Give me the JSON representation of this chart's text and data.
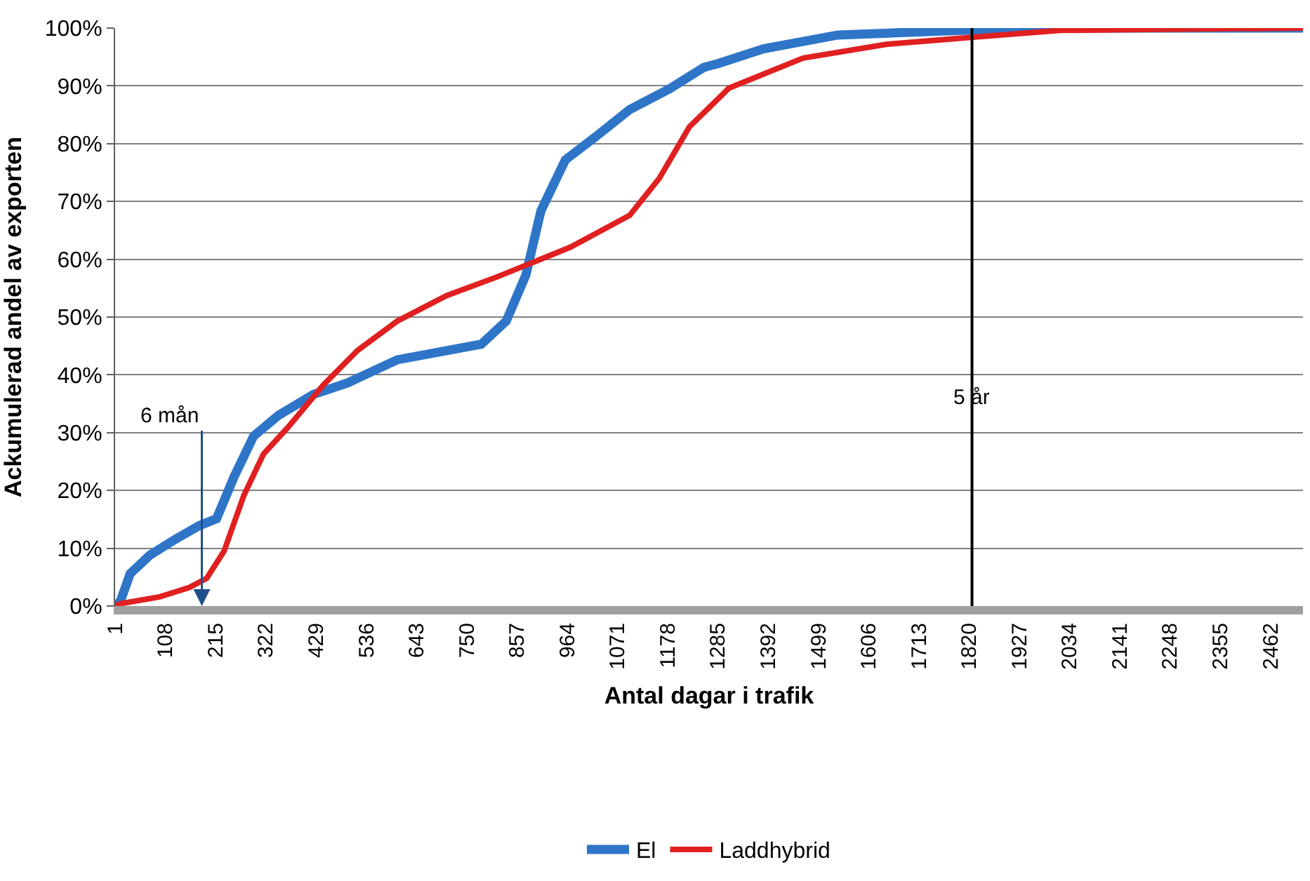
{
  "chart_data": {
    "type": "line",
    "xlabel": "Antal dagar i trafik",
    "ylabel": "Ackumulerad andel av exporten",
    "xlim": [
      1,
      2531
    ],
    "xticks": [
      1,
      108,
      215,
      322,
      429,
      536,
      643,
      750,
      857,
      964,
      1071,
      1178,
      1285,
      1392,
      1499,
      1606,
      1713,
      1820,
      1927,
      2034,
      2141,
      2248,
      2355,
      2462
    ],
    "ylim": [
      0,
      100
    ],
    "yticks": [
      {
        "value": 0,
        "label": "0%"
      },
      {
        "value": 10,
        "label": "10%"
      },
      {
        "value": 20,
        "label": "20%"
      },
      {
        "value": 30,
        "label": "30%"
      },
      {
        "value": 40,
        "label": "40%"
      },
      {
        "value": 50,
        "label": "50%"
      },
      {
        "value": 60,
        "label": "60%"
      },
      {
        "value": 70,
        "label": "70%"
      },
      {
        "value": 80,
        "label": "80%"
      },
      {
        "value": 90,
        "label": "90%"
      },
      {
        "value": 100,
        "label": "100%"
      }
    ],
    "grid": "y",
    "legend": "bottom",
    "marker": "none",
    "line_style": "solid",
    "ref_lines": [
      {
        "axis": "x",
        "value": 1826,
        "label": "5 år",
        "color": "#000000"
      }
    ],
    "annotations": [
      "6 mån"
    ],
    "series": [
      {
        "name": "El",
        "color": "#2e75c8",
        "x": [
          1,
          12,
          33,
          75,
          128,
          180,
          217,
          254,
          296,
          349,
          423,
          496,
          602,
          707,
          781,
          834,
          876,
          908,
          960,
          1023,
          1097,
          1182,
          1255,
          1287,
          1382,
          1540,
          1803,
          2014,
          2531
        ],
        "values": [
          0,
          0.8,
          5.6,
          8.8,
          11.5,
          13.9,
          15.1,
          22.3,
          29.4,
          33,
          36.6,
          38.6,
          42.6,
          44.2,
          45.3,
          49.3,
          57.3,
          68.4,
          77.2,
          81.1,
          85.9,
          89.5,
          93.2,
          93.9,
          96.4,
          98.8,
          99.6,
          100,
          100
        ]
      },
      {
        "name": "Laddhybrid",
        "color": "#e02020",
        "x": [
          1,
          12,
          96,
          159,
          196,
          233,
          275,
          317,
          370,
          444,
          517,
          602,
          707,
          813,
          886,
          971,
          1097,
          1160,
          1224,
          1297,
          1308,
          1466,
          1645,
          1824,
          2014,
          2225,
          2531
        ],
        "values": [
          0,
          0.4,
          1.6,
          3.2,
          4.8,
          9.5,
          19.1,
          26.3,
          31,
          38.2,
          44.2,
          49.3,
          53.7,
          56.9,
          59.3,
          62.1,
          67.6,
          74,
          82.9,
          88.7,
          89.6,
          94.8,
          97.2,
          98.4,
          99.6,
          99.8,
          100
        ]
      }
    ]
  }
}
